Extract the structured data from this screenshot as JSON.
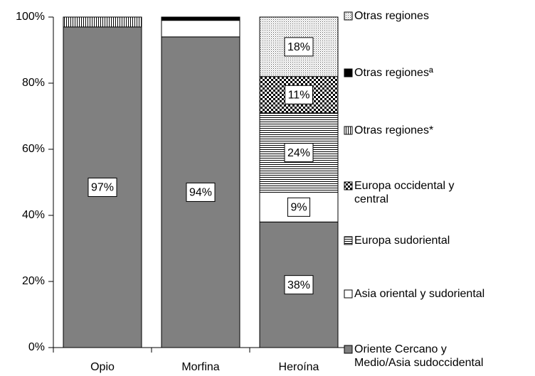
{
  "chart_data": {
    "type": "stacked_bar",
    "categories": [
      "Opio",
      "Morfina",
      "Heroína"
    ],
    "series": [
      {
        "name": "Oriente Cercano y\nMedio/Asia sudoccidental",
        "color": "#808080",
        "pattern": "solid",
        "values": [
          97,
          94,
          38
        ],
        "value_labels": [
          "97%",
          "94%",
          "38%"
        ]
      },
      {
        "name": "Asia oriental y sudoriental",
        "color": "#ffffff",
        "pattern": "solid",
        "values": [
          0,
          5,
          9
        ],
        "value_labels": [
          null,
          null,
          "9%"
        ]
      },
      {
        "name": "Europa sudoriental",
        "color": "#000000",
        "pattern": "hlines",
        "values": [
          0,
          0,
          24
        ],
        "value_labels": [
          null,
          null,
          "24%"
        ]
      },
      {
        "name": "Europa occidental y\ncentral",
        "color": "#000000",
        "pattern": "checker",
        "values": [
          0,
          0,
          11
        ],
        "value_labels": [
          null,
          null,
          "11%"
        ]
      },
      {
        "name": "Otras regiones*",
        "color": "#000000",
        "pattern": "vlines",
        "values": [
          3,
          0,
          0
        ],
        "value_labels": [
          null,
          null,
          null
        ]
      },
      {
        "name": "Otras regionesª",
        "color": "#000000",
        "pattern": "solid",
        "values": [
          0,
          1,
          0
        ],
        "value_labels": [
          null,
          null,
          null
        ]
      },
      {
        "name": "Otras regiones",
        "color": "#000000",
        "pattern": "dots",
        "values": [
          0,
          0,
          18
        ],
        "value_labels": [
          null,
          null,
          "18%"
        ]
      }
    ],
    "ylim": [
      0,
      100
    ],
    "yticks": [
      {
        "value": 0,
        "label": "0%"
      },
      {
        "value": 20,
        "label": "20%"
      },
      {
        "value": 40,
        "label": "40%"
      },
      {
        "value": 60,
        "label": "60%"
      },
      {
        "value": 80,
        "label": "80%"
      },
      {
        "value": 100,
        "label": "100%"
      }
    ]
  }
}
